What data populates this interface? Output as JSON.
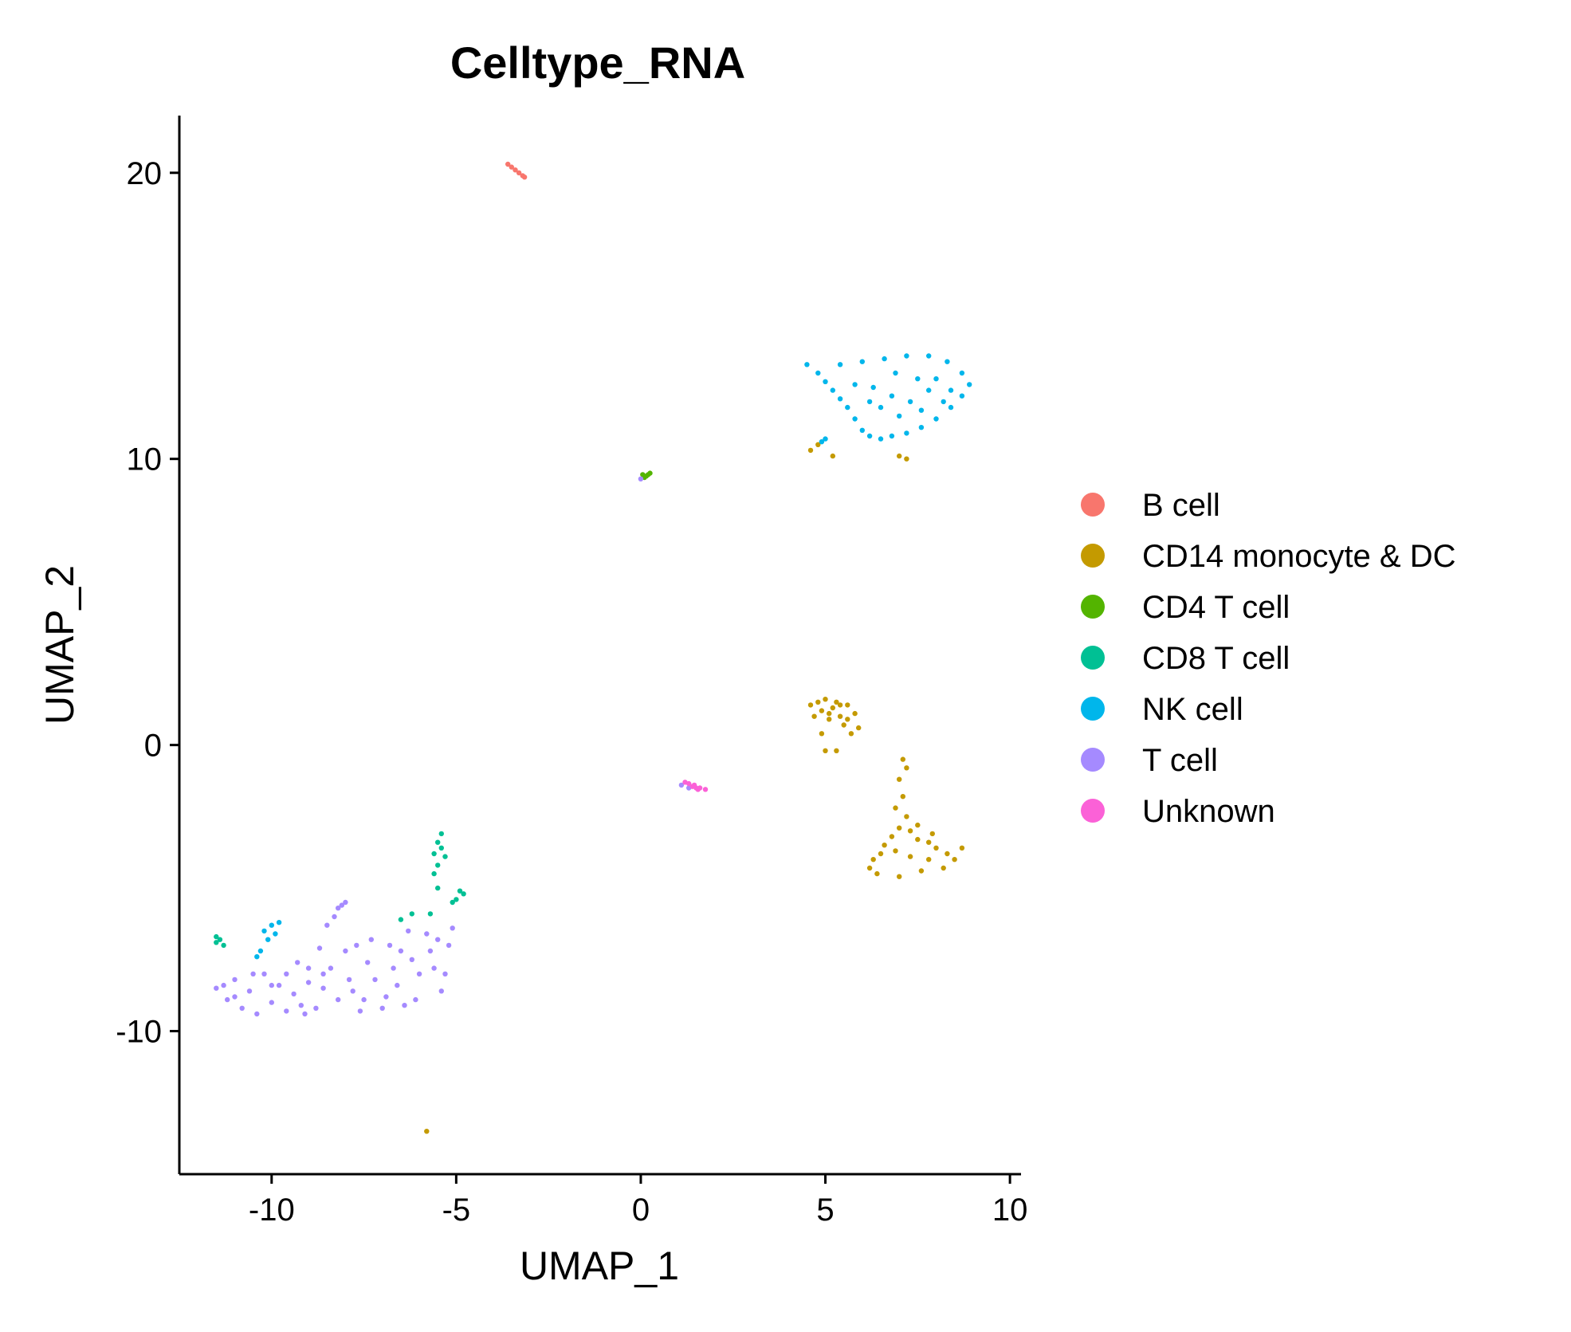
{
  "chart_data": {
    "type": "scatter",
    "title": "Celltype_RNA",
    "xlabel": "UMAP_1",
    "ylabel": "UMAP_2",
    "xlim": [
      -12.5,
      10.3
    ],
    "ylim": [
      -15.0,
      22.0
    ],
    "x_ticks": [
      -10,
      -5,
      0,
      5,
      10
    ],
    "x_tick_labels": [
      "-10",
      "-5",
      "0",
      "5",
      "10"
    ],
    "y_ticks": [
      -10,
      0,
      10,
      20
    ],
    "y_tick_labels": [
      "-10",
      "0",
      "10",
      "20"
    ],
    "grid": false,
    "legend_position": "right",
    "series": [
      {
        "name": "B cell",
        "color": "#F8766D",
        "points": [
          [
            -3.6,
            20.3
          ],
          [
            -3.5,
            20.2
          ],
          [
            -3.4,
            20.1
          ],
          [
            -3.3,
            20.0
          ],
          [
            -3.2,
            19.9
          ],
          [
            -3.15,
            19.85
          ]
        ]
      },
      {
        "name": "CD14 monocyte & DC",
        "color": "#C49A00",
        "points": [
          [
            4.6,
            1.4
          ],
          [
            4.7,
            1.0
          ],
          [
            4.8,
            1.5
          ],
          [
            4.9,
            1.2
          ],
          [
            5.0,
            1.6
          ],
          [
            5.1,
            0.9
          ],
          [
            5.2,
            1.3
          ],
          [
            5.3,
            1.5
          ],
          [
            5.4,
            1.0
          ],
          [
            5.5,
            0.7
          ],
          [
            5.6,
            1.4
          ],
          [
            5.7,
            0.4
          ],
          [
            5.8,
            1.1
          ],
          [
            5.9,
            0.6
          ],
          [
            4.9,
            0.4
          ],
          [
            5.0,
            -0.2
          ],
          [
            5.3,
            -0.2
          ],
          [
            5.1,
            1.1
          ],
          [
            5.4,
            1.4
          ],
          [
            5.6,
            0.9
          ],
          [
            7.1,
            -0.5
          ],
          [
            7.2,
            -0.8
          ],
          [
            7.0,
            -1.2
          ],
          [
            7.1,
            -1.8
          ],
          [
            6.9,
            -2.2
          ],
          [
            7.2,
            -2.5
          ],
          [
            7.0,
            -2.9
          ],
          [
            7.3,
            -3.0
          ],
          [
            6.8,
            -3.2
          ],
          [
            7.5,
            -3.3
          ],
          [
            6.6,
            -3.5
          ],
          [
            7.8,
            -3.4
          ],
          [
            6.5,
            -3.8
          ],
          [
            8.0,
            -3.6
          ],
          [
            6.3,
            -4.0
          ],
          [
            8.3,
            -3.8
          ],
          [
            6.2,
            -4.3
          ],
          [
            8.5,
            -4.0
          ],
          [
            6.4,
            -4.5
          ],
          [
            7.0,
            -4.6
          ],
          [
            7.6,
            -4.4
          ],
          [
            8.2,
            -4.3
          ],
          [
            7.3,
            -3.9
          ],
          [
            6.9,
            -3.7
          ],
          [
            7.8,
            -4.0
          ],
          [
            8.7,
            -3.6
          ],
          [
            7.5,
            -2.8
          ],
          [
            7.9,
            -3.1
          ],
          [
            4.6,
            10.3
          ],
          [
            4.8,
            10.5
          ],
          [
            5.2,
            10.1
          ],
          [
            7.0,
            10.1
          ],
          [
            7.2,
            10.0
          ],
          [
            -5.8,
            -13.5
          ]
        ]
      },
      {
        "name": "CD4 T cell",
        "color": "#53B400",
        "points": [
          [
            0.05,
            9.45
          ],
          [
            0.15,
            9.4
          ],
          [
            0.25,
            9.5
          ],
          [
            0.1,
            9.35
          ],
          [
            0.2,
            9.45
          ]
        ]
      },
      {
        "name": "CD8 T cell",
        "color": "#00C094",
        "points": [
          [
            -5.4,
            -3.1
          ],
          [
            -5.5,
            -3.4
          ],
          [
            -5.6,
            -3.8
          ],
          [
            -5.5,
            -4.2
          ],
          [
            -5.4,
            -3.6
          ],
          [
            -5.6,
            -4.5
          ],
          [
            -5.3,
            -3.9
          ],
          [
            -4.9,
            -5.1
          ],
          [
            -5.0,
            -5.4
          ],
          [
            -4.8,
            -5.2
          ],
          [
            -5.1,
            -5.5
          ],
          [
            -5.5,
            -5.0
          ],
          [
            -5.7,
            -5.9
          ],
          [
            -6.2,
            -5.9
          ],
          [
            -6.5,
            -6.1
          ],
          [
            -11.4,
            -6.8
          ],
          [
            -11.5,
            -6.9
          ],
          [
            -11.3,
            -7.0
          ],
          [
            -11.5,
            -6.7
          ]
        ]
      },
      {
        "name": "NK cell",
        "color": "#00B6EB",
        "points": [
          [
            4.5,
            13.3
          ],
          [
            4.8,
            13.0
          ],
          [
            5.0,
            12.7
          ],
          [
            5.2,
            12.4
          ],
          [
            5.4,
            12.1
          ],
          [
            5.6,
            11.8
          ],
          [
            5.8,
            11.4
          ],
          [
            6.0,
            11.0
          ],
          [
            6.2,
            10.8
          ],
          [
            6.5,
            10.7
          ],
          [
            6.8,
            10.8
          ],
          [
            7.2,
            10.9
          ],
          [
            7.6,
            11.1
          ],
          [
            8.0,
            11.4
          ],
          [
            8.4,
            11.8
          ],
          [
            8.7,
            12.2
          ],
          [
            8.9,
            12.6
          ],
          [
            8.7,
            13.0
          ],
          [
            8.3,
            13.4
          ],
          [
            7.8,
            13.6
          ],
          [
            7.2,
            13.6
          ],
          [
            6.6,
            13.5
          ],
          [
            6.0,
            13.4
          ],
          [
            5.4,
            13.3
          ],
          [
            6.3,
            12.5
          ],
          [
            6.8,
            12.2
          ],
          [
            7.3,
            12.0
          ],
          [
            7.8,
            12.4
          ],
          [
            8.2,
            12.0
          ],
          [
            7.0,
            11.5
          ],
          [
            6.5,
            11.8
          ],
          [
            7.5,
            12.8
          ],
          [
            6.9,
            13.0
          ],
          [
            8.0,
            12.8
          ],
          [
            5.8,
            12.6
          ],
          [
            6.2,
            12.0
          ],
          [
            7.6,
            11.7
          ],
          [
            8.4,
            12.4
          ],
          [
            4.9,
            10.6
          ],
          [
            5.0,
            10.7
          ],
          [
            -10.2,
            -6.5
          ],
          [
            -10.0,
            -6.3
          ],
          [
            -9.8,
            -6.2
          ],
          [
            -10.1,
            -6.8
          ],
          [
            -9.9,
            -6.6
          ],
          [
            -10.3,
            -7.2
          ],
          [
            -10.4,
            -7.4
          ]
        ]
      },
      {
        "name": "T cell",
        "color": "#A58AFF",
        "points": [
          [
            -11.5,
            -8.5
          ],
          [
            -11.2,
            -8.9
          ],
          [
            -11.0,
            -8.2
          ],
          [
            -10.8,
            -9.2
          ],
          [
            -10.6,
            -8.6
          ],
          [
            -10.4,
            -9.4
          ],
          [
            -10.2,
            -8.0
          ],
          [
            -10.0,
            -9.0
          ],
          [
            -9.8,
            -8.4
          ],
          [
            -9.6,
            -9.3
          ],
          [
            -9.4,
            -8.7
          ],
          [
            -9.2,
            -9.1
          ],
          [
            -9.0,
            -8.3
          ],
          [
            -8.8,
            -9.2
          ],
          [
            -8.6,
            -8.5
          ],
          [
            -8.4,
            -7.8
          ],
          [
            -8.2,
            -8.9
          ],
          [
            -8.0,
            -7.2
          ],
          [
            -7.8,
            -8.6
          ],
          [
            -7.6,
            -9.3
          ],
          [
            -7.4,
            -7.6
          ],
          [
            -7.2,
            -8.2
          ],
          [
            -7.0,
            -9.2
          ],
          [
            -6.8,
            -7.0
          ],
          [
            -6.6,
            -8.4
          ],
          [
            -6.4,
            -9.1
          ],
          [
            -6.2,
            -7.5
          ],
          [
            -6.0,
            -8.0
          ],
          [
            -5.8,
            -6.6
          ],
          [
            -5.6,
            -7.8
          ],
          [
            -5.4,
            -8.6
          ],
          [
            -5.2,
            -7.0
          ],
          [
            -5.1,
            -6.4
          ],
          [
            -5.3,
            -8.0
          ],
          [
            -5.5,
            -6.8
          ],
          [
            -6.3,
            -6.5
          ],
          [
            -6.9,
            -8.8
          ],
          [
            -7.3,
            -6.8
          ],
          [
            -7.7,
            -7.0
          ],
          [
            -8.1,
            -5.6
          ],
          [
            -8.2,
            -5.7
          ],
          [
            -8.0,
            -5.5
          ],
          [
            -8.3,
            -6.0
          ],
          [
            -8.5,
            -6.3
          ],
          [
            -8.7,
            -7.1
          ],
          [
            -9.0,
            -7.8
          ],
          [
            -9.3,
            -7.6
          ],
          [
            -9.6,
            -8.0
          ],
          [
            -10.0,
            -8.4
          ],
          [
            -10.5,
            -8.0
          ],
          [
            -11.0,
            -8.8
          ],
          [
            -11.3,
            -8.4
          ],
          [
            -6.7,
            -7.8
          ],
          [
            -7.9,
            -8.2
          ],
          [
            -8.6,
            -8.0
          ],
          [
            -9.1,
            -9.4
          ],
          [
            -6.1,
            -8.9
          ],
          [
            -5.7,
            -7.2
          ],
          [
            -6.5,
            -7.2
          ],
          [
            -7.5,
            -8.9
          ],
          [
            0.0,
            9.3
          ],
          [
            1.1,
            -1.4
          ],
          [
            1.3,
            -1.5
          ]
        ]
      },
      {
        "name": "Unknown",
        "color": "#FB61D7",
        "points": [
          [
            1.2,
            -1.3
          ],
          [
            1.3,
            -1.35
          ],
          [
            1.4,
            -1.45
          ],
          [
            1.5,
            -1.5
          ],
          [
            1.55,
            -1.55
          ],
          [
            1.6,
            -1.5
          ],
          [
            1.45,
            -1.4
          ],
          [
            1.75,
            -1.55
          ]
        ]
      }
    ]
  }
}
